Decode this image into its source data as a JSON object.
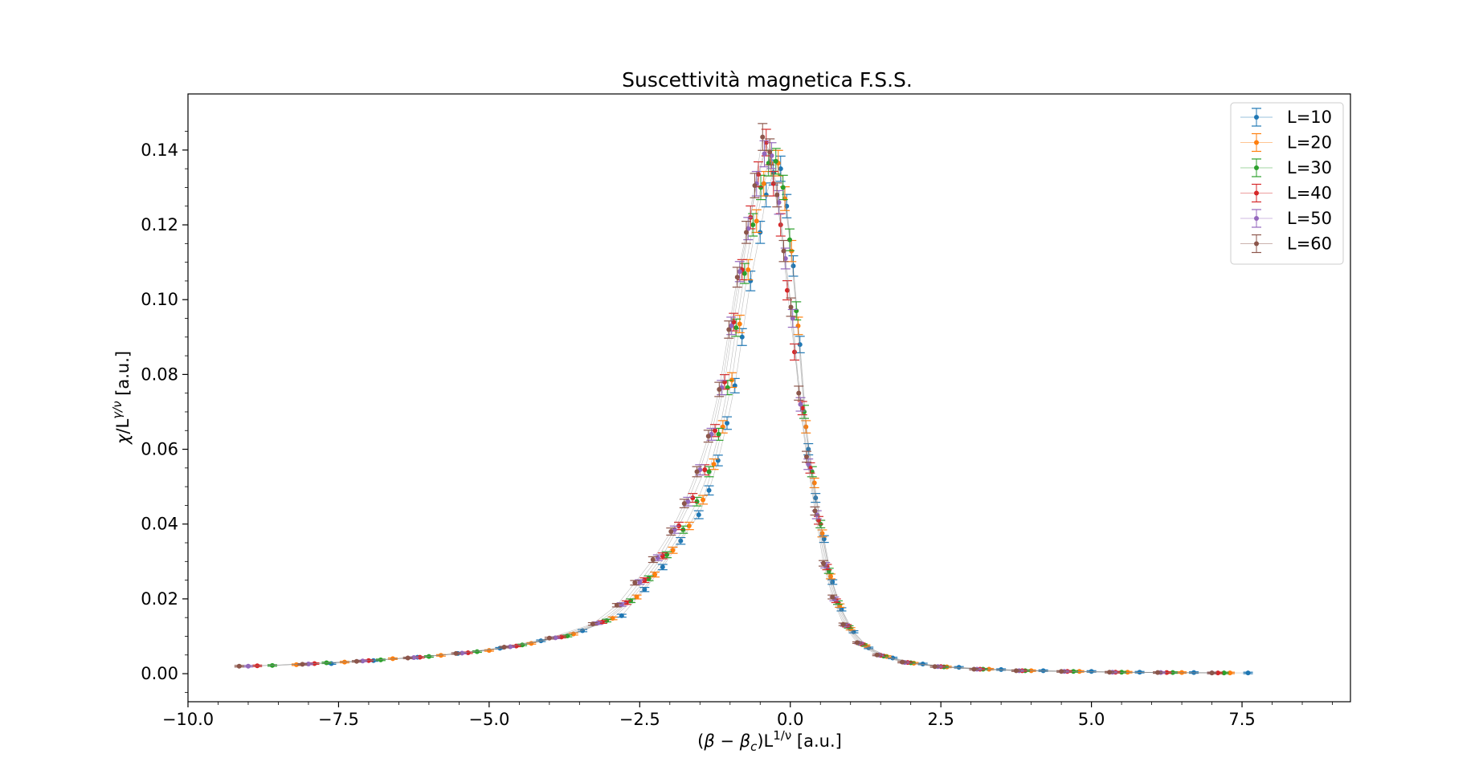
{
  "chart_data": {
    "type": "scatter",
    "title": "Suscettività magnetica F.S.S.",
    "xlabel_parts": {
      "prefix": "(",
      "beta": "β",
      "minus": " − ",
      "betac": "β",
      "sub_c": "c",
      "close": ")L",
      "exp": "1/ν",
      "unit": " [a.u.]"
    },
    "ylabel_parts": {
      "chi": "χ",
      "slash": "/L",
      "exp": "γ/ν",
      "unit": " [a.u.]"
    },
    "xlim": [
      -10.0,
      9.3
    ],
    "ylim": [
      -0.0075,
      0.155
    ],
    "xticks": [
      -10.0,
      -7.5,
      -5.0,
      -2.5,
      0.0,
      2.5,
      5.0,
      7.5
    ],
    "xtick_labels": [
      "−10.0",
      "−7.5",
      "−5.0",
      "−2.5",
      "0.0",
      "2.5",
      "5.0",
      "7.5"
    ],
    "yticks": [
      0.0,
      0.02,
      0.04,
      0.06,
      0.08,
      0.1,
      0.12,
      0.14
    ],
    "ytick_labels": [
      "0.00",
      "0.02",
      "0.04",
      "0.06",
      "0.08",
      "0.10",
      "0.12",
      "0.14"
    ],
    "legend_position": "top-right",
    "grid": false,
    "series": [
      {
        "name": "L=10",
        "color": "#1f77b4",
        "x": [
          -7.62,
          -6.92,
          -6.19,
          -5.52,
          -4.82,
          -4.14,
          -3.45,
          -2.8,
          -2.42,
          -2.12,
          -1.82,
          -1.52,
          -1.35,
          -1.2,
          -1.05,
          -0.92,
          -0.8,
          -0.66,
          -0.5,
          -0.4,
          -0.28,
          -0.16,
          -0.06,
          0.05,
          0.16,
          0.3,
          0.42,
          0.56,
          0.7,
          0.85,
          1.05,
          1.3,
          1.7,
          2.2,
          2.8,
          3.5,
          4.2,
          5.0,
          5.8,
          6.7,
          7.6
        ],
        "y": [
          0.0027,
          0.0035,
          0.0044,
          0.0054,
          0.0068,
          0.0088,
          0.0115,
          0.0155,
          0.0225,
          0.0285,
          0.0355,
          0.0425,
          0.049,
          0.057,
          0.067,
          0.077,
          0.09,
          0.105,
          0.118,
          0.128,
          0.134,
          0.135,
          0.125,
          0.109,
          0.088,
          0.06,
          0.047,
          0.036,
          0.0245,
          0.0172,
          0.0112,
          0.0069,
          0.0042,
          0.0026,
          0.0017,
          0.0011,
          0.0008,
          0.0006,
          0.0004,
          0.0003,
          0.0002
        ]
      },
      {
        "name": "L=20",
        "color": "#ff7f0e",
        "x": [
          -8.2,
          -7.4,
          -6.6,
          -5.8,
          -5.0,
          -4.3,
          -3.6,
          -2.95,
          -2.55,
          -2.25,
          -1.95,
          -1.68,
          -1.45,
          -1.27,
          -1.12,
          -0.97,
          -0.84,
          -0.7,
          -0.56,
          -0.44,
          -0.32,
          -0.2,
          -0.09,
          0.02,
          0.13,
          0.26,
          0.4,
          0.53,
          0.67,
          0.82,
          1.0,
          1.25,
          1.6,
          2.05,
          2.6,
          3.3,
          4.0,
          4.8,
          5.6,
          6.5,
          7.3
        ],
        "y": [
          0.0024,
          0.0031,
          0.004,
          0.0049,
          0.0062,
          0.0081,
          0.0106,
          0.0148,
          0.0205,
          0.0265,
          0.033,
          0.0395,
          0.0465,
          0.056,
          0.066,
          0.0785,
          0.0935,
          0.108,
          0.121,
          0.131,
          0.1365,
          0.1365,
          0.127,
          0.113,
          0.093,
          0.066,
          0.051,
          0.0375,
          0.026,
          0.0182,
          0.012,
          0.0075,
          0.0046,
          0.0028,
          0.0018,
          0.0012,
          0.0008,
          0.0006,
          0.0004,
          0.0003,
          0.0002
        ]
      },
      {
        "name": "L=30",
        "color": "#2ca02c",
        "x": [
          -8.6,
          -7.7,
          -6.8,
          -6.0,
          -5.2,
          -4.45,
          -3.7,
          -3.05,
          -2.65,
          -2.35,
          -2.05,
          -1.78,
          -1.55,
          -1.35,
          -1.19,
          -1.04,
          -0.9,
          -0.76,
          -0.62,
          -0.49,
          -0.36,
          -0.24,
          -0.12,
          -0.01,
          0.1,
          0.23,
          0.36,
          0.5,
          0.64,
          0.79,
          0.97,
          1.2,
          1.55,
          2.0,
          2.55,
          3.2,
          3.9,
          4.7,
          5.5,
          6.35,
          7.2
        ],
        "y": [
          0.0022,
          0.0029,
          0.0037,
          0.0046,
          0.0059,
          0.0077,
          0.0101,
          0.0142,
          0.0195,
          0.0255,
          0.0318,
          0.0385,
          0.046,
          0.054,
          0.064,
          0.0765,
          0.0925,
          0.107,
          0.12,
          0.13,
          0.1365,
          0.137,
          0.13,
          0.116,
          0.097,
          0.07,
          0.054,
          0.04,
          0.0275,
          0.019,
          0.0125,
          0.0078,
          0.0047,
          0.0029,
          0.0018,
          0.0012,
          0.0008,
          0.0006,
          0.0004,
          0.0003,
          0.0002
        ]
      },
      {
        "name": "L=40",
        "color": "#d62728",
        "x": [
          -8.85,
          -7.9,
          -7.0,
          -6.15,
          -5.35,
          -4.55,
          -3.8,
          -3.12,
          -2.72,
          -2.42,
          -2.12,
          -1.85,
          -1.62,
          -1.42,
          -1.25,
          -1.09,
          -0.94,
          -0.8,
          -0.66,
          -0.53,
          -0.4,
          -0.28,
          -0.16,
          -0.05,
          0.07,
          0.2,
          0.33,
          0.47,
          0.61,
          0.76,
          0.94,
          1.17,
          1.5,
          1.95,
          2.5,
          3.15,
          3.85,
          4.6,
          5.4,
          6.25,
          7.1
        ],
        "y": [
          0.0021,
          0.0027,
          0.0035,
          0.0044,
          0.0056,
          0.0074,
          0.0098,
          0.0138,
          0.019,
          0.025,
          0.0315,
          0.0395,
          0.047,
          0.0545,
          0.065,
          0.078,
          0.094,
          0.108,
          0.122,
          0.1335,
          0.142,
          0.131,
          0.12,
          0.1025,
          0.086,
          0.071,
          0.055,
          0.041,
          0.0285,
          0.0195,
          0.0128,
          0.008,
          0.0049,
          0.003,
          0.0019,
          0.0012,
          0.0008,
          0.0006,
          0.0004,
          0.0003,
          0.0002
        ]
      },
      {
        "name": "L=50",
        "color": "#9467bd",
        "x": [
          -9.0,
          -8.0,
          -7.1,
          -6.25,
          -5.45,
          -4.65,
          -3.9,
          -3.2,
          -2.8,
          -2.5,
          -2.2,
          -1.92,
          -1.7,
          -1.5,
          -1.31,
          -1.14,
          -0.98,
          -0.84,
          -0.7,
          -0.56,
          -0.43,
          -0.31,
          -0.19,
          -0.08,
          0.04,
          0.17,
          0.3,
          0.44,
          0.58,
          0.73,
          0.91,
          1.14,
          1.47,
          1.9,
          2.45,
          3.1,
          3.8,
          4.55,
          5.35,
          6.15,
          7.0
        ],
        "y": [
          0.002,
          0.0026,
          0.0034,
          0.0043,
          0.0055,
          0.0072,
          0.0096,
          0.0135,
          0.0185,
          0.0245,
          0.031,
          0.0385,
          0.046,
          0.0545,
          0.064,
          0.0765,
          0.093,
          0.1075,
          0.119,
          0.131,
          0.139,
          0.1385,
          0.126,
          0.111,
          0.095,
          0.072,
          0.056,
          0.0425,
          0.029,
          0.02,
          0.013,
          0.0082,
          0.005,
          0.003,
          0.0019,
          0.0012,
          0.0008,
          0.0006,
          0.0004,
          0.0003,
          0.0002
        ]
      },
      {
        "name": "L=60",
        "color": "#8c564b",
        "x": [
          -9.15,
          -8.1,
          -7.2,
          -6.35,
          -5.55,
          -4.75,
          -4.0,
          -3.28,
          -2.88,
          -2.58,
          -2.28,
          -1.98,
          -1.76,
          -1.55,
          -1.36,
          -1.18,
          -1.02,
          -0.88,
          -0.73,
          -0.59,
          -0.46,
          -0.34,
          -0.22,
          -0.11,
          0.01,
          0.14,
          0.27,
          0.41,
          0.55,
          0.7,
          0.88,
          1.11,
          1.44,
          1.86,
          2.4,
          3.05,
          3.75,
          4.5,
          5.3,
          6.1,
          7.0
        ],
        "y": [
          0.002,
          0.0025,
          0.0033,
          0.0042,
          0.0054,
          0.0071,
          0.0095,
          0.0133,
          0.0183,
          0.0243,
          0.0305,
          0.038,
          0.0455,
          0.054,
          0.0635,
          0.076,
          0.092,
          0.106,
          0.118,
          0.1305,
          0.1435,
          0.1395,
          0.128,
          0.113,
          0.098,
          0.075,
          0.058,
          0.0435,
          0.0295,
          0.0205,
          0.0132,
          0.0083,
          0.005,
          0.0031,
          0.0019,
          0.0012,
          0.0008,
          0.0006,
          0.0004,
          0.0003,
          0.0002
        ]
      }
    ]
  }
}
